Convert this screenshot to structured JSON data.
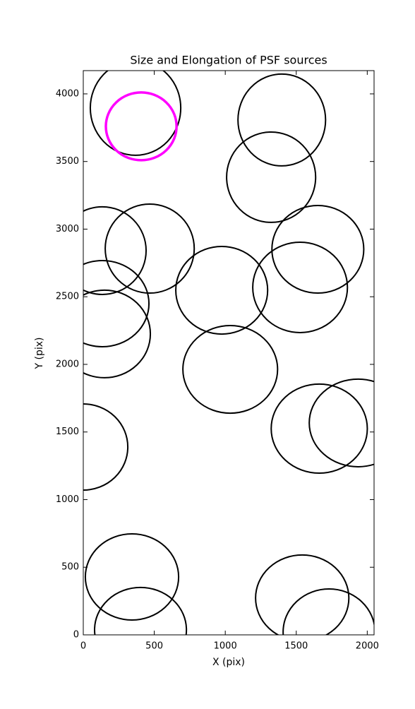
{
  "chart_data": {
    "type": "ellipse",
    "title": "Size and Elongation of PSF sources",
    "xlabel": "X (pix)",
    "ylabel": "Y (pix)",
    "xlim": [
      0,
      2048
    ],
    "ylim": [
      0,
      4172
    ],
    "xticks": [
      0,
      500,
      1000,
      1500,
      2000
    ],
    "yticks": [
      0,
      500,
      1000,
      1500,
      2000,
      2500,
      3000,
      3500,
      4000
    ],
    "series": [
      {
        "color": "#000000",
        "linewidth": 2,
        "x": [
          368,
          1398,
          1323,
          134,
          468,
          134,
          149,
          975,
          1652,
          1527,
          1035,
          1662,
          1935,
          0,
          343,
          403,
          1542,
          1731
        ],
        "y": [
          3896,
          3807,
          3384,
          2841,
          2856,
          2449,
          2225,
          2548,
          2851,
          2569,
          1963,
          1525,
          1567,
          1389,
          428,
          37,
          272,
          21
        ],
        "width": [
          637,
          617,
          627,
          617,
          627,
          657,
          647,
          647,
          647,
          667,
          667,
          677,
          687,
          627,
          657,
          647,
          657,
          647
        ],
        "height": [
          700,
          679,
          668,
          648,
          658,
          637,
          648,
          648,
          648,
          668,
          648,
          658,
          648,
          637,
          637,
          627,
          637,
          637
        ]
      },
      {
        "color": "#ff00ff",
        "linewidth": 3.5,
        "x": [
          408
        ],
        "y": [
          3760
        ],
        "width": [
          498
        ],
        "height": [
          501
        ]
      }
    ]
  }
}
